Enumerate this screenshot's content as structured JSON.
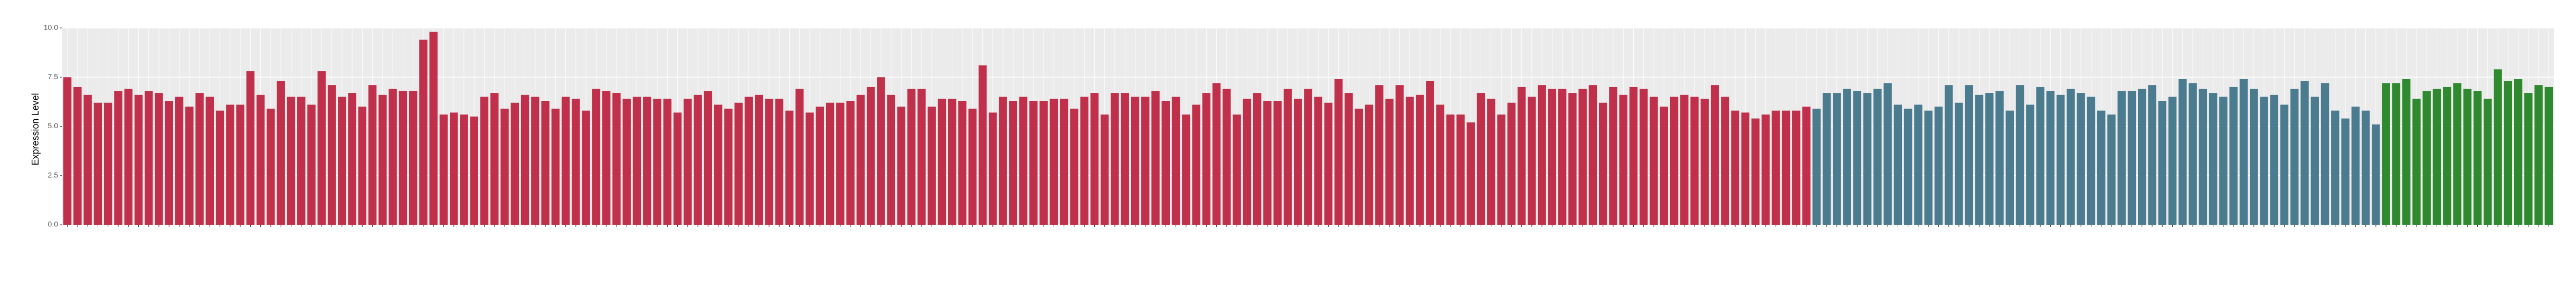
{
  "chart_data": {
    "type": "bar",
    "ylabel": "Expression Level",
    "ylim": [
      0,
      10
    ],
    "yticks": [
      {
        "value": 0,
        "label": "0.0"
      },
      {
        "value": 2.5,
        "label": "2.5"
      },
      {
        "value": 5,
        "label": "5.0"
      },
      {
        "value": 7.5,
        "label": "7.5"
      },
      {
        "value": 10,
        "label": "10.0"
      }
    ],
    "grid": true,
    "series": [
      {
        "color": "#c0304a",
        "values": [
          7.5,
          7.0,
          6.6,
          6.2,
          6.2,
          6.8,
          6.9,
          6.6,
          6.8,
          6.7,
          6.3,
          6.5,
          6.0,
          6.7,
          6.5,
          5.8,
          6.1,
          6.1,
          7.8,
          6.6,
          5.9,
          7.3,
          6.5,
          6.5,
          6.1,
          7.8,
          7.1,
          6.5,
          6.7,
          6.0,
          7.1,
          6.6,
          6.9,
          6.8,
          6.8,
          9.4,
          9.8,
          5.6,
          5.7,
          5.6,
          5.5,
          6.5,
          6.7,
          5.9,
          6.2,
          6.6,
          6.5,
          6.3,
          5.9,
          6.5,
          6.4,
          5.8,
          6.9,
          6.8,
          6.7,
          6.4,
          6.5,
          6.5,
          6.4,
          6.4,
          5.7,
          6.4,
          6.6,
          6.8,
          6.1,
          5.9,
          6.2,
          6.5,
          6.6,
          6.4,
          6.4,
          5.8,
          6.9,
          5.7,
          6.0,
          6.2,
          6.2,
          6.3,
          6.6,
          7.0,
          7.5,
          6.6,
          6.0,
          6.9,
          6.9,
          6.0,
          6.4,
          6.4,
          6.3,
          5.9,
          8.1,
          5.7,
          6.5,
          6.3,
          6.5,
          6.3,
          6.3,
          6.4,
          6.4,
          5.9,
          6.5,
          6.7,
          5.6,
          6.7,
          6.7,
          6.5,
          6.5,
          6.8,
          6.3,
          6.5,
          5.6,
          6.1,
          6.7,
          7.2,
          6.9,
          5.6,
          6.4,
          6.7,
          6.3,
          6.3,
          6.9,
          6.4,
          6.9,
          6.5,
          6.2,
          7.4,
          6.7,
          5.9,
          6.1,
          7.1,
          6.4,
          7.1,
          6.5,
          6.6,
          7.3,
          6.1,
          5.6,
          5.6,
          5.2,
          6.7,
          6.4,
          5.6,
          6.2,
          7.0,
          6.5,
          7.1,
          6.9,
          6.9,
          6.7,
          6.9,
          7.1,
          6.2,
          7.0,
          6.6,
          7.0,
          6.9,
          6.5,
          6.0,
          6.5,
          6.6,
          6.5,
          6.4,
          7.1,
          6.5,
          5.8,
          5.7,
          5.4,
          5.6,
          5.8,
          5.8,
          5.8,
          6.0
        ]
      },
      {
        "color": "#4b7b8e",
        "values": [
          5.9,
          6.7,
          6.7,
          6.9,
          6.8,
          6.7,
          6.9,
          7.2,
          6.1,
          5.9,
          6.1,
          5.8,
          6.0,
          7.1,
          6.2,
          7.1,
          6.6,
          6.7,
          6.8,
          5.8,
          7.1,
          6.1,
          7.0,
          6.8,
          6.6,
          6.9,
          6.7,
          6.5,
          5.8,
          5.6,
          6.8,
          6.8,
          6.9,
          7.1,
          6.3,
          6.5,
          7.4,
          7.2,
          6.9,
          6.7,
          6.5,
          7.0,
          7.4,
          6.9,
          6.5,
          6.6,
          6.1,
          6.9,
          7.3,
          6.5,
          7.2,
          5.8,
          5.4,
          6.0,
          5.8,
          5.1
        ]
      },
      {
        "color": "#2f8a2f",
        "values": [
          7.2,
          7.2,
          7.4,
          6.4,
          6.8,
          6.9,
          7.0,
          7.2,
          6.9,
          6.8,
          6.4,
          7.9,
          7.3,
          7.4,
          6.7,
          7.1,
          7.0
        ]
      }
    ]
  }
}
